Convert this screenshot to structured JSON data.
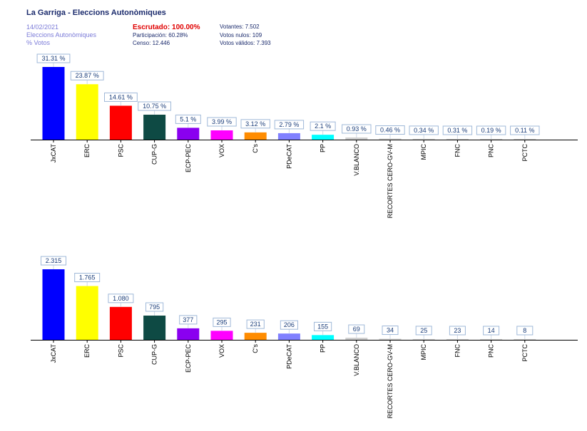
{
  "header": {
    "title": "La Garriga - Eleccions Autonòmiques",
    "date": "14/02/2021",
    "subtitle": "Eleccions Autonòmiques",
    "metric": "% Votos",
    "escrutado": "Escrutado: 100.00%",
    "participacion": "Participación: 60.28%",
    "censo": "Censo: 12.446",
    "votantes": "Votantes: 7.502",
    "votos_nulos": "Votos nulos: 109",
    "votos_validos": "Votos válidos: 7.393"
  },
  "colors": {
    "JxCAT": "#0000ff",
    "ERC": "#ffff00",
    "PSC": "#ff0000",
    "CUP-G": "#0e4a44",
    "ECP-PEC": "#8a00f0",
    "VOX": "#ff00ff",
    "C's": "#ff8c00",
    "PDeCAT": "#8080ff",
    "PP": "#00ffff",
    "V.BLANCO": "#d0d0d0",
    "RECORTES CERO-GV-M": "#d0d0d0",
    "MPIC": "#d0d0d0",
    "FNC": "#d0d0d0",
    "PNC": "#d0d0d0",
    "PCTC": "#d0d0d0"
  },
  "chart_data": [
    {
      "type": "bar",
      "categories": [
        "JxCAT",
        "ERC",
        "PSC",
        "CUP-G",
        "ECP-PEC",
        "VOX",
        "C's",
        "PDeCAT",
        "PP",
        "V.BLANCO",
        "RECORTES CERO-GV-M",
        "MPIC",
        "FNC",
        "PNC",
        "PCTC"
      ],
      "values": [
        31.31,
        23.87,
        14.61,
        10.75,
        5.1,
        3.99,
        3.12,
        2.79,
        2.1,
        0.93,
        0.46,
        0.34,
        0.31,
        0.19,
        0.11
      ],
      "data_labels": [
        "31.31 %",
        "23.87 %",
        "14.61 %",
        "10.75 %",
        "5.1 %",
        "3.99 %",
        "3.12 %",
        "2.79 %",
        "2.1 %",
        "0.93 %",
        "0.46 %",
        "0.34 %",
        "0.31 %",
        "0.19 %",
        "0.11 %"
      ],
      "ylim": [
        0,
        31.31
      ],
      "grid": false,
      "legend": "none"
    },
    {
      "type": "bar",
      "categories": [
        "JxCAT",
        "ERC",
        "PSC",
        "CUP-G",
        "ECP-PEC",
        "VOX",
        "C's",
        "PDeCAT",
        "PP",
        "V.BLANCO",
        "RECORTES CERO-GV-M",
        "MPIC",
        "FNC",
        "PNC",
        "PCTC"
      ],
      "values": [
        2315,
        1765,
        1080,
        795,
        377,
        295,
        231,
        206,
        155,
        69,
        34,
        25,
        23,
        14,
        8
      ],
      "data_labels": [
        "2.315",
        "1.765",
        "1.080",
        "795",
        "377",
        "295",
        "231",
        "206",
        "155",
        "69",
        "34",
        "25",
        "23",
        "14",
        "8"
      ],
      "ylim": [
        0,
        2315
      ],
      "grid": false,
      "legend": "none"
    }
  ]
}
